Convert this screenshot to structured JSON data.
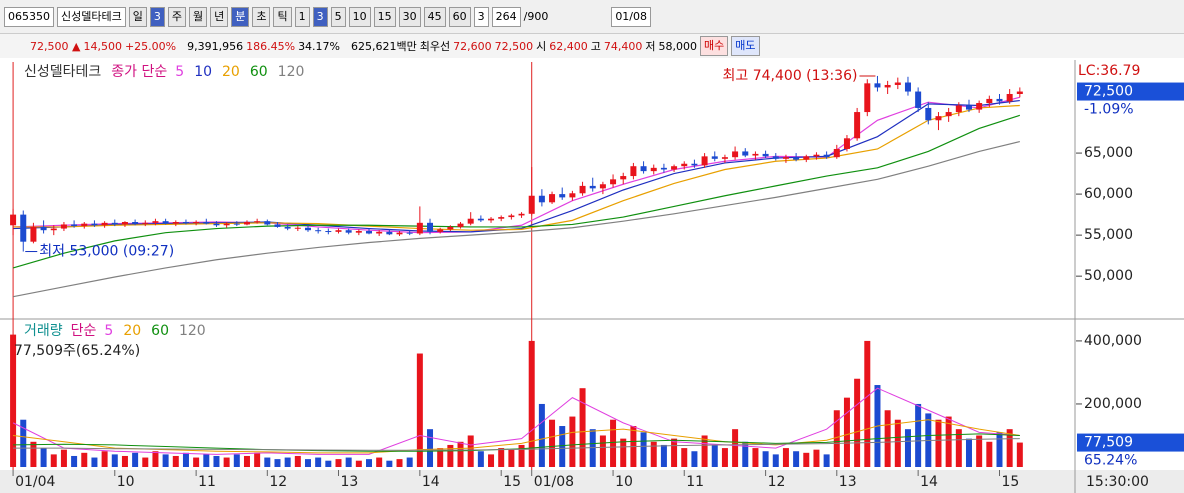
{
  "toolbar": {
    "code": "065350",
    "name": "신성델타테크",
    "period": [
      "일",
      "3",
      "주",
      "월",
      "년",
      "분",
      "초",
      "틱"
    ],
    "intervals": [
      "1",
      "3",
      "5",
      "10",
      "15",
      "30",
      "45",
      "60"
    ],
    "count_select": "3",
    "count": "264",
    "count_max": "/900",
    "date": "01/08"
  },
  "info": {
    "price": "72,500 ▲",
    "change": "14,500",
    "rate": "+25.00%",
    "volume": "9,391,956",
    "vol_ratio": "186.45%",
    "turnover": "34.17%",
    "amount": "625,621백만",
    "best_label": "최우선",
    "ask": "72,600",
    "bid": "72,500",
    "open_label": "시",
    "open": "62,400",
    "high_label": "고",
    "high": "74,400",
    "low_label": "저",
    "low": "58,000",
    "buy": "매수",
    "sell": "매도"
  },
  "chart_data": [
    {
      "type": "candlestick",
      "title": "신성델타테크",
      "ma_label": "종가 단순",
      "up_color": "#e8141c",
      "down_color": "#1c4ad0",
      "xlim": [
        -0.5,
        100
      ],
      "ylim": [
        44900,
        76100
      ],
      "xticks": [
        {
          "value": 0,
          "label": "01/04"
        },
        {
          "value": 10,
          "label": "10"
        },
        {
          "value": 18,
          "label": "11"
        },
        {
          "value": 25,
          "label": "12"
        },
        {
          "value": 32,
          "label": "13"
        },
        {
          "value": 40,
          "label": "14"
        },
        {
          "value": 48,
          "label": "15"
        },
        {
          "value": 51,
          "label": "01/08"
        },
        {
          "value": 59,
          "label": "10"
        },
        {
          "value": 66,
          "label": "11"
        },
        {
          "value": 74,
          "label": "12"
        },
        {
          "value": 81,
          "label": "13"
        },
        {
          "value": 89,
          "label": "14"
        },
        {
          "value": 97,
          "label": "15"
        }
      ],
      "yticks": [
        {
          "value": 50000,
          "label": "50,000"
        },
        {
          "value": 55000,
          "label": "55,000"
        },
        {
          "value": 60000,
          "label": "60,000"
        },
        {
          "value": 65000,
          "label": "65,000"
        }
      ],
      "candles": [
        [
          56200,
          58200,
          55000,
          57500
        ],
        [
          57500,
          58000,
          53000,
          54200
        ],
        [
          54200,
          56500,
          54000,
          56000
        ],
        [
          56000,
          56800,
          55200,
          55600
        ],
        [
          55600,
          56200,
          55000,
          55800
        ],
        [
          55800,
          56600,
          55500,
          56300
        ],
        [
          56300,
          56800,
          55900,
          56100
        ],
        [
          56100,
          56600,
          55800,
          56400
        ],
        [
          56400,
          56800,
          56000,
          56200
        ],
        [
          56200,
          56700,
          55900,
          56500
        ],
        [
          56500,
          56900,
          56100,
          56300
        ],
        [
          56300,
          56700,
          56000,
          56600
        ],
        [
          56600,
          56900,
          56200,
          56400
        ],
        [
          56400,
          56800,
          56100,
          56500
        ],
        [
          56500,
          57000,
          56200,
          56700
        ],
        [
          56700,
          57000,
          56300,
          56400
        ],
        [
          56400,
          56800,
          56100,
          56600
        ],
        [
          56600,
          56900,
          56300,
          56500
        ],
        [
          56500,
          56800,
          56200,
          56600
        ],
        [
          56600,
          57000,
          56300,
          56400
        ],
        [
          56400,
          56700,
          56000,
          56200
        ],
        [
          56200,
          56600,
          55900,
          56400
        ],
        [
          56400,
          56700,
          56100,
          56300
        ],
        [
          56300,
          56800,
          56200,
          56600
        ],
        [
          56600,
          57000,
          56400,
          56700
        ],
        [
          56700,
          56900,
          56200,
          56300
        ],
        [
          56300,
          56600,
          55900,
          56000
        ],
        [
          56000,
          56300,
          55600,
          55800
        ],
        [
          55800,
          56100,
          55500,
          55900
        ],
        [
          55900,
          56200,
          55400,
          55600
        ],
        [
          55600,
          55900,
          55200,
          55500
        ],
        [
          55500,
          55800,
          55100,
          55400
        ],
        [
          55400,
          55800,
          55200,
          55600
        ],
        [
          55600,
          55800,
          55100,
          55300
        ],
        [
          55300,
          55700,
          55000,
          55500
        ],
        [
          55500,
          55800,
          55100,
          55200
        ],
        [
          55200,
          55600,
          54900,
          55400
        ],
        [
          55400,
          55700,
          55000,
          55100
        ],
        [
          55100,
          55500,
          54900,
          55300
        ],
        [
          55300,
          55600,
          55000,
          55200
        ],
        [
          55200,
          58500,
          55000,
          56500
        ],
        [
          56500,
          57000,
          55100,
          55400
        ],
        [
          55400,
          55900,
          55200,
          55700
        ],
        [
          55700,
          56200,
          55500,
          56000
        ],
        [
          56000,
          56600,
          55800,
          56400
        ],
        [
          56400,
          57800,
          56200,
          57000
        ],
        [
          57000,
          57400,
          56600,
          56800
        ],
        [
          56800,
          57200,
          56500,
          57000
        ],
        [
          57000,
          57400,
          56700,
          57200
        ],
        [
          57200,
          57600,
          56900,
          57400
        ],
        [
          57400,
          57800,
          57100,
          57600
        ],
        [
          57600,
          63300,
          57400,
          59800
        ],
        [
          59800,
          60600,
          58500,
          59000
        ],
        [
          59000,
          60300,
          58800,
          60000
        ],
        [
          60000,
          60800,
          59300,
          59600
        ],
        [
          59600,
          60400,
          59200,
          60100
        ],
        [
          60100,
          61500,
          59800,
          61000
        ],
        [
          61000,
          62000,
          60300,
          60700
        ],
        [
          60700,
          61500,
          60000,
          61200
        ],
        [
          61200,
          62400,
          60800,
          61800
        ],
        [
          61800,
          62600,
          61200,
          62200
        ],
        [
          62200,
          63800,
          61800,
          63400
        ],
        [
          63400,
          64000,
          62500,
          62800
        ],
        [
          62800,
          63600,
          62400,
          63200
        ],
        [
          63200,
          63700,
          62600,
          63000
        ],
        [
          63000,
          63600,
          62700,
          63400
        ],
        [
          63400,
          64000,
          63000,
          63700
        ],
        [
          63700,
          64200,
          63200,
          63500
        ],
        [
          63500,
          65000,
          63200,
          64600
        ],
        [
          64600,
          65200,
          64000,
          64300
        ],
        [
          64300,
          64800,
          63800,
          64500
        ],
        [
          64500,
          65800,
          64200,
          65200
        ],
        [
          65200,
          65600,
          64500,
          64700
        ],
        [
          64700,
          65200,
          64200,
          64900
        ],
        [
          64900,
          65300,
          64400,
          64600
        ],
        [
          64600,
          65000,
          64100,
          64300
        ],
        [
          64300,
          64800,
          63800,
          64500
        ],
        [
          64500,
          65000,
          64000,
          64200
        ],
        [
          64200,
          64800,
          63900,
          64600
        ],
        [
          64600,
          65100,
          64200,
          64800
        ],
        [
          64800,
          65200,
          64300,
          64500
        ],
        [
          64500,
          66000,
          64300,
          65500
        ],
        [
          65500,
          67200,
          65200,
          66800
        ],
        [
          66800,
          70500,
          66500,
          70000
        ],
        [
          70000,
          74000,
          69500,
          73500
        ],
        [
          73500,
          74400,
          72500,
          73000
        ],
        [
          73000,
          73800,
          72200,
          73300
        ],
        [
          73300,
          74200,
          72800,
          73600
        ],
        [
          73600,
          74300,
          72000,
          72500
        ],
        [
          72500,
          73000,
          70000,
          70500
        ],
        [
          70500,
          71200,
          68500,
          69000
        ],
        [
          69000,
          70000,
          67800,
          69500
        ],
        [
          69500,
          70500,
          68800,
          70000
        ],
        [
          70000,
          71200,
          69500,
          70800
        ],
        [
          70800,
          71500,
          70000,
          70300
        ],
        [
          70300,
          71400,
          69900,
          71100
        ],
        [
          71100,
          72000,
          70600,
          71600
        ],
        [
          71600,
          72200,
          70900,
          71300
        ],
        [
          71300,
          72800,
          71000,
          72200
        ],
        [
          72200,
          73000,
          71800,
          72500
        ]
      ],
      "ma_x": [
        0,
        5,
        10,
        15,
        20,
        25,
        30,
        35,
        40,
        45,
        50,
        55,
        60,
        65,
        70,
        75,
        80,
        85,
        90,
        95,
        99
      ],
      "series": [
        {
          "name": "5",
          "color": "#e040e0",
          "values": [
            56000,
            56200,
            56400,
            56500,
            56600,
            56500,
            56000,
            55600,
            55300,
            55400,
            56200,
            59200,
            61200,
            63000,
            64000,
            64600,
            64500,
            69000,
            71200,
            70500,
            71800
          ]
        },
        {
          "name": "10",
          "color": "#2030c0",
          "values": [
            55800,
            56000,
            56300,
            56400,
            56500,
            56600,
            56200,
            55800,
            55500,
            55400,
            55800,
            58000,
            60500,
            62500,
            63800,
            64400,
            64600,
            67000,
            71000,
            70800,
            71400
          ]
        },
        {
          "name": "20",
          "color": "#e8a000",
          "values": [
            56000,
            56000,
            56200,
            56300,
            56400,
            56500,
            56400,
            56100,
            55800,
            55600,
            55700,
            56800,
            59200,
            61300,
            63000,
            64000,
            64400,
            65500,
            69000,
            70500,
            70800
          ]
        },
        {
          "name": "60",
          "color": "#109010",
          "values": [
            51000,
            52800,
            54300,
            55300,
            55800,
            56100,
            56200,
            56200,
            56100,
            56000,
            56000,
            56300,
            57200,
            58500,
            59800,
            61000,
            62200,
            63200,
            65200,
            68000,
            69600
          ]
        },
        {
          "name": "120",
          "color": "#808080",
          "values": [
            47500,
            48700,
            49900,
            51000,
            52000,
            52800,
            53500,
            54100,
            54600,
            55000,
            55400,
            55900,
            56700,
            57600,
            58600,
            59600,
            60700,
            61800,
            63400,
            65200,
            66400
          ]
        }
      ],
      "annotations": [
        {
          "text": "최고 74,400 (13:36)",
          "x": 85,
          "y": 74400
        },
        {
          "text": "최저 53,000 (09:27)",
          "x": 1,
          "y": 53000
        }
      ],
      "lc_label": "LC:36.79",
      "last_price": {
        "value": 72500,
        "label": "72,500"
      },
      "last_change": "-1.09%"
    },
    {
      "type": "volume-bar",
      "title": "거래량",
      "ma_label": "단순",
      "ylim": [
        0,
        460000
      ],
      "yticks": [
        {
          "value": 200000,
          "label": "200,000"
        },
        {
          "value": 400000,
          "label": "400,000"
        }
      ],
      "values": [
        420000,
        150000,
        80000,
        60000,
        40000,
        55000,
        35000,
        45000,
        30000,
        50000,
        40000,
        35000,
        45000,
        30000,
        50000,
        40000,
        35000,
        45000,
        30000,
        40000,
        35000,
        30000,
        40000,
        35000,
        45000,
        30000,
        25000,
        30000,
        35000,
        25000,
        30000,
        20000,
        25000,
        30000,
        20000,
        25000,
        30000,
        20000,
        25000,
        30000,
        360000,
        120000,
        60000,
        70000,
        80000,
        100000,
        50000,
        40000,
        60000,
        55000,
        70000,
        400000,
        200000,
        150000,
        130000,
        160000,
        250000,
        120000,
        100000,
        150000,
        90000,
        130000,
        110000,
        80000,
        70000,
        90000,
        60000,
        50000,
        100000,
        70000,
        60000,
        120000,
        80000,
        60000,
        50000,
        40000,
        60000,
        50000,
        45000,
        55000,
        40000,
        180000,
        220000,
        280000,
        400000,
        260000,
        180000,
        150000,
        120000,
        200000,
        170000,
        150000,
        160000,
        120000,
        90000,
        100000,
        80000,
        110000,
        120000,
        77509
      ],
      "ma_x": [
        0,
        5,
        10,
        15,
        20,
        25,
        30,
        35,
        40,
        45,
        50,
        55,
        60,
        65,
        70,
        75,
        80,
        85,
        90,
        95,
        99
      ],
      "series": [
        {
          "name": "5",
          "color": "#e040e0",
          "values": [
            140000,
            60000,
            50000,
            45000,
            40000,
            45000,
            40000,
            40000,
            100000,
            70000,
            90000,
            220000,
            140000,
            80000,
            70000,
            60000,
            120000,
            250000,
            180000,
            110000,
            100000
          ]
        },
        {
          "name": "20",
          "color": "#e8a000",
          "values": [
            100000,
            80000,
            60000,
            55000,
            50000,
            48000,
            45000,
            45000,
            55000,
            60000,
            75000,
            110000,
            120000,
            100000,
            80000,
            70000,
            85000,
            130000,
            150000,
            120000,
            100000
          ]
        },
        {
          "name": "60",
          "color": "#109010",
          "values": [
            70000,
            72000,
            70000,
            65000,
            60000,
            55000,
            52000,
            50000,
            50000,
            52000,
            58000,
            70000,
            80000,
            85000,
            80000,
            75000,
            78000,
            90000,
            100000,
            105000,
            100000
          ]
        },
        {
          "name": "120",
          "color": "#808080",
          "values": [
            60000,
            60000,
            58000,
            57000,
            56000,
            55000,
            54000,
            53000,
            53000,
            54000,
            56000,
            60000,
            64000,
            68000,
            70000,
            72000,
            74000,
            78000,
            84000,
            88000,
            90000
          ]
        }
      ],
      "volume_text": "77,509주(65.24%)",
      "last_value": {
        "value": 77509,
        "label": "77,509"
      },
      "last_ratio": "65.24%",
      "time": "15:30:00"
    }
  ]
}
